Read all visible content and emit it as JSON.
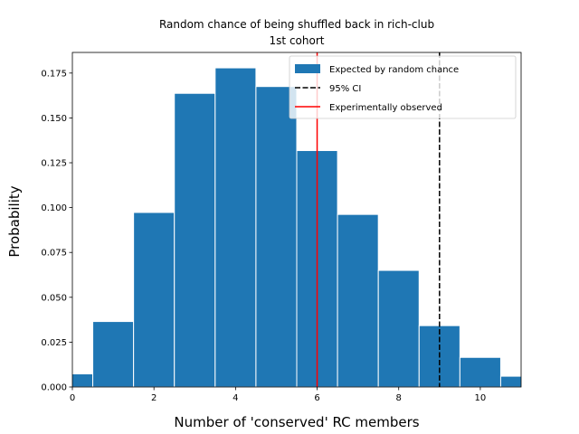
{
  "chart_data": {
    "type": "bar",
    "title": "Random chance of being shuffled back in rich-club",
    "subtitle": "1st cohort",
    "xlabel": "Number of 'conserved' RC members",
    "ylabel": "Probability",
    "xlim": [
      0,
      11
    ],
    "ylim": [
      0,
      0.1865
    ],
    "xticks": [
      0,
      2,
      4,
      6,
      8,
      10
    ],
    "yticks": [
      0.0,
      0.025,
      0.05,
      0.075,
      0.1,
      0.125,
      0.15,
      0.175
    ],
    "ytick_labels": [
      "0.000",
      "0.025",
      "0.050",
      "0.075",
      "0.100",
      "0.125",
      "0.150",
      "0.175"
    ],
    "bar_width": 1.0,
    "bars": [
      {
        "center": 0,
        "value": 0.0073
      },
      {
        "center": 1,
        "value": 0.0365
      },
      {
        "center": 2,
        "value": 0.0973
      },
      {
        "center": 3,
        "value": 0.1637
      },
      {
        "center": 4,
        "value": 0.1779
      },
      {
        "center": 5,
        "value": 0.1675
      },
      {
        "center": 6,
        "value": 0.1318
      },
      {
        "center": 7,
        "value": 0.0962
      },
      {
        "center": 8,
        "value": 0.065
      },
      {
        "center": 9,
        "value": 0.0342
      },
      {
        "center": 10,
        "value": 0.0165
      },
      {
        "center": 11,
        "value": 0.006
      }
    ],
    "ci_line_x": 9,
    "observed_line_x": 6,
    "legend": {
      "placement": "upper right",
      "entries": [
        {
          "label": "Expected by random chance",
          "kind": "patch",
          "color": "#1f77b4"
        },
        {
          "label": "95% CI",
          "kind": "dashed-line",
          "color": "#000000"
        },
        {
          "label": "Experimentally observed",
          "kind": "line",
          "color": "#ff0000"
        }
      ]
    },
    "colors": {
      "bar": "#1f77b4",
      "ci": "#000000",
      "observed": "#ff0000"
    }
  }
}
